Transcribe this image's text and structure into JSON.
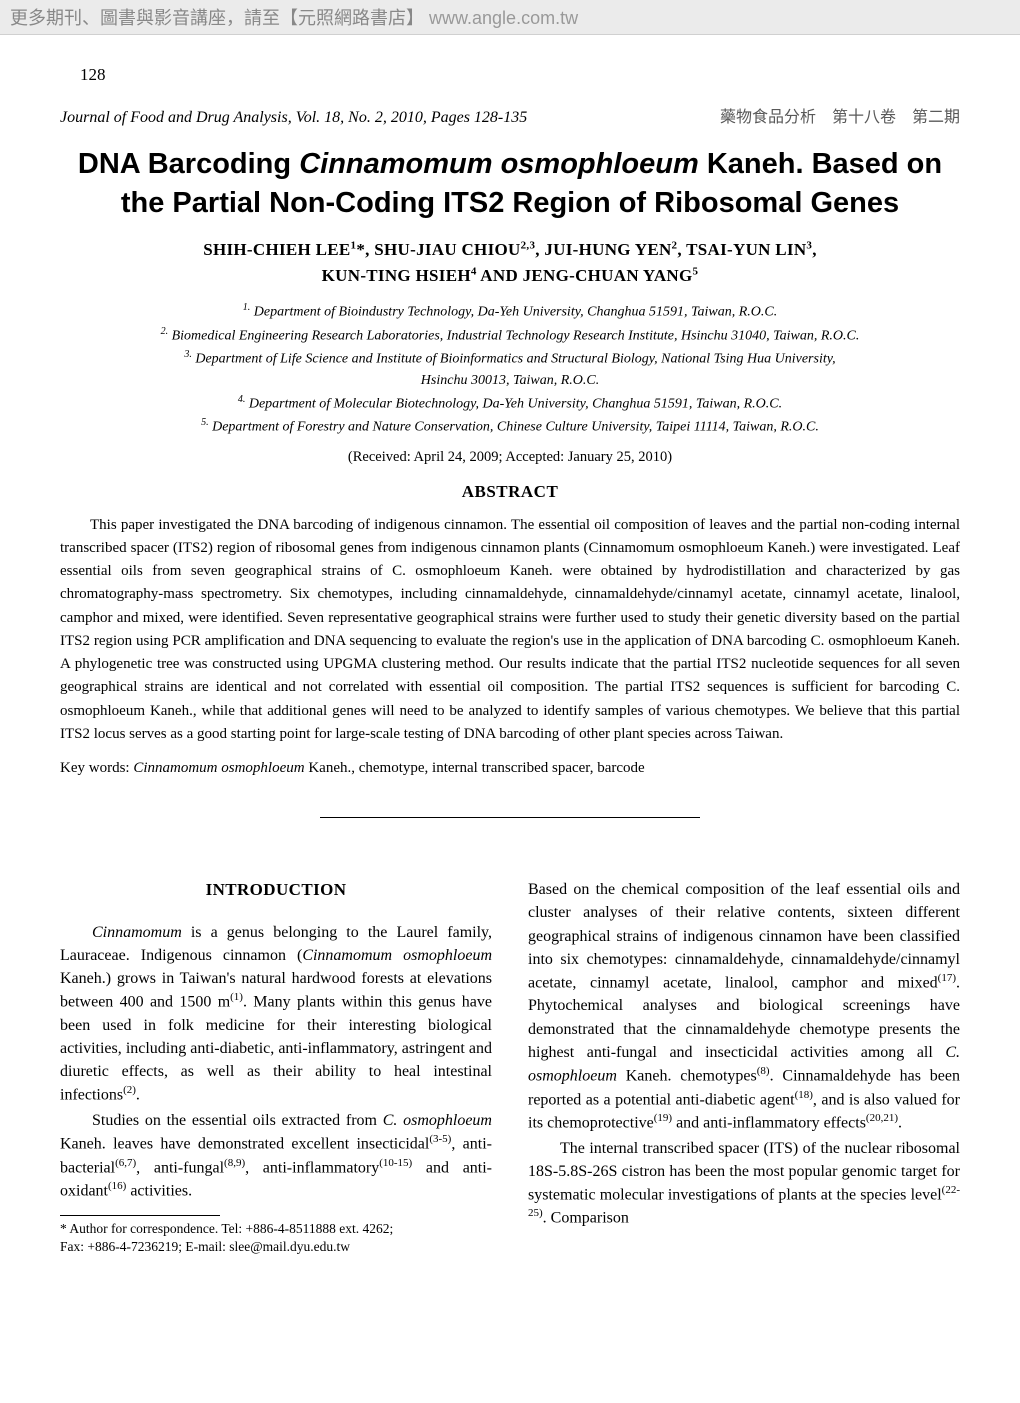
{
  "banner": {
    "cjk_text": "更多期刊、圖書與影音講座，請至【元照網路書店】",
    "url": "www.angle.com.tw"
  },
  "page_number": "128",
  "journal_line": {
    "left": "Journal of Food and Drug Analysis, Vol. 18, No. 2, 2010, Pages 128-135",
    "right": "藥物食品分析　第十八卷　第二期"
  },
  "title": {
    "pre": "DNA Barcoding ",
    "italic": "Cinnamomum osmophloeum",
    "post": " Kaneh. Based on the Partial Non-Coding ITS2 Region of Ribosomal Genes"
  },
  "authors_line1": "SHIH-CHIEH LEE",
  "authors_sup1": "1",
  "authors_sup1_star": "*",
  "authors_sep": ", ",
  "authors_2": "SHU-JIAU CHIOU",
  "authors_sup2": "2,3",
  "authors_3": "JUI-HUNG YEN",
  "authors_sup3": "2",
  "authors_4": "TSAI-YUN LIN",
  "authors_sup4": "3",
  "authors_5": "KUN-TING HSIEH",
  "authors_sup5": "4",
  "authors_and": " AND ",
  "authors_6": "JENG-CHUAN YANG",
  "authors_sup6": "5",
  "affiliations": {
    "a1_sup": "1.",
    "a1": " Department of Bioindustry Technology, Da-Yeh University, Changhua 51591, Taiwan, R.O.C.",
    "a2_sup": "2.",
    "a2": " Biomedical Engineering Research Laboratories, Industrial Technology Research Institute, Hsinchu 31040, Taiwan, R.O.C.",
    "a3_sup": "3.",
    "a3": " Department of Life Science and Institute of Bioinformatics and Structural Biology, National Tsing Hua University,",
    "a3b": "Hsinchu 30013, Taiwan, R.O.C.",
    "a4_sup": "4.",
    "a4": " Department of Molecular Biotechnology, Da-Yeh University, Changhua 51591, Taiwan, R.O.C.",
    "a5_sup": "5.",
    "a5": " Department of Forestry and Nature Conservation, Chinese Culture University, Taipei 11114, Taiwan, R.O.C."
  },
  "received": "(Received: April 24, 2009; Accepted: January 25, 2010)",
  "abstract_heading": "ABSTRACT",
  "abstract_text": "This paper investigated the DNA barcoding of indigenous cinnamon. The essential oil composition of leaves and the partial non-coding internal transcribed spacer (ITS2) region of ribosomal genes from indigenous cinnamon plants (Cinnamomum osmophloeum Kaneh.) were investigated. Leaf essential oils from seven geographical strains of C. osmophloeum Kaneh. were obtained by hydrodistillation and characterized by gas chromatography-mass spectrometry. Six chemotypes, including cinnamaldehyde, cinnamaldehyde/cinnamyl acetate, cinnamyl acetate, linalool, camphor and mixed, were identified. Seven representative geographical strains were further used to study their genetic diversity based on the partial ITS2 region using PCR amplification and DNA sequencing to evaluate the region's use in the application of DNA barcoding C. osmophloeum Kaneh. A phylogenetic tree was constructed using UPGMA clustering method. Our results indicate that the partial ITS2 nucleotide sequences for all seven geographical strains are identical and not correlated with essential oil composition. The partial ITS2 sequences is sufficient for barcoding C. osmophloeum Kaneh., while that additional genes will need to be analyzed to identify samples of various chemotypes. We believe that this partial ITS2 locus serves as a good starting point for large-scale testing of DNA barcoding of other plant species across Taiwan.",
  "keywords_label": "Key words: ",
  "keywords_italic": "Cinnamomum osmophloeum",
  "keywords_rest": " Kaneh., chemotype, internal transcribed spacer, barcode",
  "introduction_heading": "INTRODUCTION",
  "col_left": {
    "p1_a": "Cinnamomum",
    "p1_b": " is a genus belonging to the Laurel family, Lauraceae. Indigenous cinnamon (",
    "p1_c": "Cinnamomum osmophloeum",
    "p1_d": " Kaneh.) grows in Taiwan's natural hardwood forests at elevations between 400 and 1500 m",
    "p1_ref1": "(1)",
    "p1_e": ". Many plants within this genus have been used in folk medicine for their interesting biological activities, including anti-diabetic, anti-inflammatory, astringent and diuretic effects, as well as their ability to heal intestinal infections",
    "p1_ref2": "(2)",
    "p1_f": ".",
    "p2_a": "Studies on the essential oils extracted from ",
    "p2_b": "C. osmophloeum",
    "p2_c": " Kaneh. leaves have demonstrated excellent insecticidal",
    "p2_ref1": "(3-5)",
    "p2_d": ", anti-bacterial",
    "p2_ref2": "(6,7)",
    "p2_e": ", anti-fungal",
    "p2_ref3": "(8,9)",
    "p2_f": ", anti-inflammatory",
    "p2_ref4": "(10-15)",
    "p2_g": " and anti-oxidant",
    "p2_ref5": "(16)",
    "p2_h": " activities."
  },
  "col_right": {
    "p1_a": "Based on the chemical composition of the leaf essential oils and cluster analyses of their relative contents, sixteen different geographical strains of indigenous cinnamon have been classified into six chemotypes: cinnamaldehyde, cinnamaldehyde/cinnamyl acetate, cinnamyl acetate, linalool, camphor and mixed",
    "p1_ref1": "(17)",
    "p1_b": ". Phytochemical analyses and biological screenings have demonstrated that the cinnamaldehyde chemotype presents the highest anti-fungal and insecticidal activities among all ",
    "p1_c": "C. osmophloeum",
    "p1_d": " Kaneh. chemotypes",
    "p1_ref2": "(8)",
    "p1_e": ". Cinnamaldehyde has been reported as a potential anti-diabetic agent",
    "p1_ref3": "(18)",
    "p1_f": ", and is also valued for its chemoprotective",
    "p1_ref4": "(19)",
    "p1_g": " and anti-inflammatory effects",
    "p1_ref5": "(20,21)",
    "p1_h": ".",
    "p2_a": "The internal transcribed spacer (ITS) of the nuclear ribosomal 18S-5.8S-26S cistron has been the most popular genomic target for systematic molecular investigations of plants at the species level",
    "p2_ref1": "(22-25)",
    "p2_b": ". Comparison"
  },
  "footnote": {
    "l1": "* Author for correspondence. Tel: +886-4-8511888 ext. 4262;",
    "l2": "   Fax: +886-4-7236219; E-mail: slee@mail.dyu.edu.tw"
  }
}
